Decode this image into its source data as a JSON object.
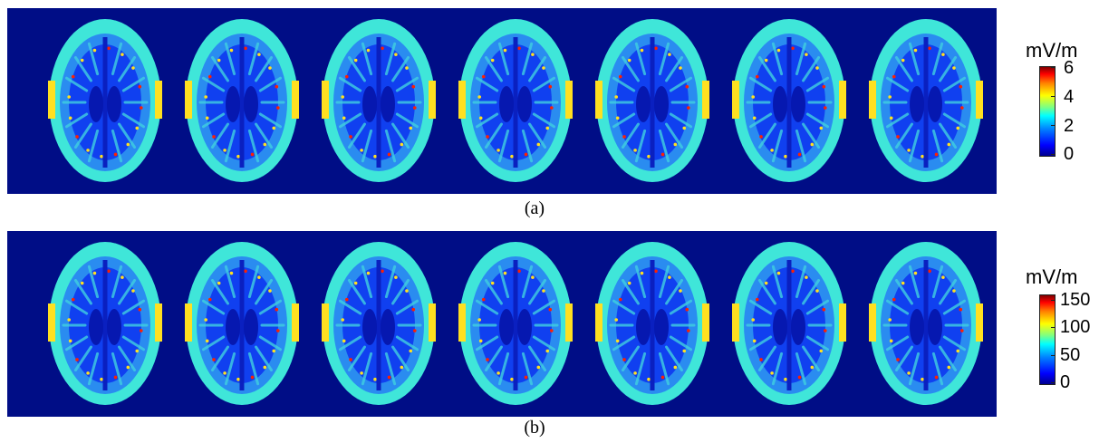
{
  "panels": [
    {
      "id": "a",
      "caption": "(a)",
      "colorbar": {
        "unit": "mV/m",
        "ticks": [
          "6",
          "4",
          "2",
          "0"
        ],
        "min": 0,
        "max": 6
      },
      "slice_count": 7
    },
    {
      "id": "b",
      "caption": "(b)",
      "colorbar": {
        "unit": "mV/m",
        "ticks": [
          "150",
          "100",
          "50",
          "0"
        ],
        "min": 0,
        "max": 160
      },
      "slice_count": 7
    }
  ],
  "colors": {
    "background": "#000d86",
    "skull": "#3fe6d9",
    "brain": "#1040f0",
    "hot_edge": "#ffe020",
    "hot_spot": "#ff2000"
  }
}
